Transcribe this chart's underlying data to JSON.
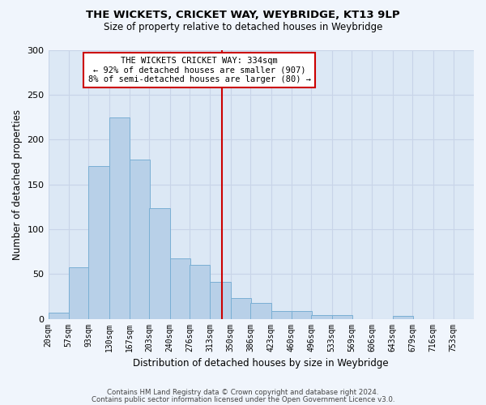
{
  "title1": "THE WICKETS, CRICKET WAY, WEYBRIDGE, KT13 9LP",
  "title2": "Size of property relative to detached houses in Weybridge",
  "xlabel": "Distribution of detached houses by size in Weybridge",
  "ylabel": "Number of detached properties",
  "bin_edges": [
    20,
    57,
    93,
    130,
    167,
    203,
    240,
    276,
    313,
    350,
    386,
    423,
    460,
    496,
    533,
    569,
    606,
    643,
    679,
    716,
    753
  ],
  "bar_heights": [
    7,
    57,
    170,
    225,
    178,
    123,
    67,
    60,
    41,
    23,
    18,
    9,
    9,
    4,
    4,
    0,
    0,
    3,
    0,
    0,
    0
  ],
  "bin_labels": [
    "20sqm",
    "57sqm",
    "93sqm",
    "130sqm",
    "167sqm",
    "203sqm",
    "240sqm",
    "276sqm",
    "313sqm",
    "350sqm",
    "386sqm",
    "423sqm",
    "460sqm",
    "496sqm",
    "533sqm",
    "569sqm",
    "606sqm",
    "643sqm",
    "679sqm",
    "716sqm",
    "753sqm"
  ],
  "bar_color": "#b8d0e8",
  "bar_edgecolor": "#7aafd4",
  "vline_x": 334,
  "vline_color": "#cc0000",
  "annotation_title": "THE WICKETS CRICKET WAY: 334sqm",
  "annotation_line2": "← 92% of detached houses are smaller (907)",
  "annotation_line3": "8% of semi-detached houses are larger (80) →",
  "annotation_box_color": "#cc0000",
  "annotation_bg": "#ffffff",
  "ylim": [
    0,
    300
  ],
  "yticks": [
    0,
    50,
    100,
    150,
    200,
    250,
    300
  ],
  "grid_color": "#c8d4e8",
  "bg_color": "#dce8f5",
  "fig_bg_color": "#f0f5fc",
  "footer1": "Contains HM Land Registry data © Crown copyright and database right 2024.",
  "footer2": "Contains public sector information licensed under the Open Government Licence v3.0."
}
